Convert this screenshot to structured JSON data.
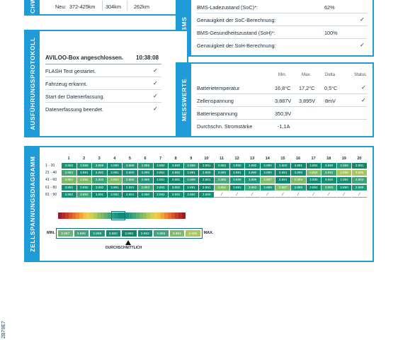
{
  "range_card": {
    "side_label": "REICHWEITE",
    "row_label": "Neu:",
    "values": [
      "372-425km",
      "304km",
      "262km"
    ]
  },
  "bms_card": {
    "side_label": "BMS",
    "rows": [
      {
        "label": "BMS-Ladezustand (SoC)*:",
        "value": "62%"
      },
      {
        "label": "Genauigkeit der SoC-Berechnung:",
        "value": "✓"
      },
      {
        "label": "BMS-Gesundheitszustand (SoH)*:",
        "value": "100%"
      },
      {
        "label": "Genauigkeit der SoH-Berechnung:",
        "value": "✓"
      }
    ]
  },
  "protocol_card": {
    "side_label": "AUSFÜHRUNGSPROTOKOLL",
    "title": "AVILOO-Box angeschlossen.",
    "time": "10:38:08",
    "steps": [
      {
        "label": "FLASH Test gestartet.",
        "value": "✓"
      },
      {
        "label": "Fahrzeug erkannt.",
        "value": "✓"
      },
      {
        "label": "Start der Datenerfassung.",
        "value": "✓"
      },
      {
        "label": "Datenerfassung beendet.",
        "value": "✓"
      }
    ]
  },
  "measure_card": {
    "side_label": "MESSWERTE",
    "headers": [
      "Min.",
      "Max.",
      "Delta",
      "Status"
    ],
    "rows": [
      {
        "label": "Batterietemperatur",
        "min": "16,8°C",
        "max": "17,2°C",
        "delta": "0,5°C",
        "status": "✓"
      },
      {
        "label": "Zellenspannung",
        "min": "3,887V",
        "max": "3,895V",
        "delta": "8mV",
        "status": "✓"
      },
      {
        "label": "Batteriespannung",
        "min": "350,9V",
        "max": "",
        "delta": "",
        "status": ""
      },
      {
        "label": "Durchschn. Stromstärke",
        "min": "-1,1A",
        "max": "",
        "delta": "",
        "status": ""
      }
    ]
  },
  "cell_card": {
    "side_label": "ZELLSPANNUNGSDIAGRAMM",
    "columns": [
      "1",
      "2",
      "3",
      "4",
      "5",
      "6",
      "7",
      "8",
      "9",
      "10",
      "11",
      "12",
      "13",
      "14",
      "15",
      "16",
      "17",
      "18",
      "19",
      "20"
    ],
    "rows": [
      {
        "label": "1 - 20",
        "cells": [
          "3.892",
          "3.889",
          "3.889",
          "3.890",
          "3.889",
          "3.889",
          "3.892",
          "3.890",
          "3.889",
          "3.891",
          "3.892",
          "3.890",
          "3.890",
          "3.890",
          "3.890",
          "3.891",
          "3.891",
          "3.890",
          "3.889",
          "3.891"
        ]
      },
      {
        "label": "21 - 40",
        "cells": [
          "3.893",
          "3.891",
          "3.892",
          "3.891",
          "3.890",
          "3.890",
          "3.891",
          "3.892",
          "3.891",
          "3.890",
          "3.890",
          "3.891",
          "3.890",
          "3.890",
          "3.891",
          "3.890",
          "3.894",
          "3.893",
          "3.895",
          "3.895"
        ]
      },
      {
        "label": "41 - 60",
        "cells": [
          "3.894",
          "3.894",
          "3.893",
          "3.894",
          "3.888",
          "3.889",
          "3.891",
          "3.891",
          "3.889",
          "3.891",
          "3.888",
          "3.889",
          "3.889",
          "3.887",
          "3.891",
          "3.894",
          "3.890",
          "3.892",
          "3.892",
          "3.893"
        ]
      },
      {
        "label": "61 - 80",
        "cells": [
          "3.892",
          "3.892",
          "3.892",
          "3.891",
          "3.891",
          "3.893",
          "3.892",
          "3.892",
          "3.891",
          "3.891",
          "3.894",
          "3.891",
          "3.893",
          "3.889",
          "3.887",
          "3.889",
          "3.891",
          "3.893",
          "3.890",
          "3.889"
        ]
      },
      {
        "label": "81 - 90",
        "cells": [
          "3.892",
          "3.893",
          "3.891",
          "3.892",
          "3.891",
          "3.890",
          "3.892",
          "3.892",
          "3.892",
          "3.890",
          "",
          "",
          "",
          "",
          "",
          "",
          "",
          "",
          "",
          ""
        ]
      }
    ],
    "legend": {
      "min_label": "MIN.",
      "max_label": "MAX.",
      "values": [
        "3.887",
        "3.888",
        "3.889",
        "3.890",
        "3.891",
        "3.892",
        "3.893",
        "3.894",
        "3.895"
      ],
      "colors": [
        "#6ab47a",
        "#3ca67a",
        "#1e9a7a",
        "#0f8f73",
        "#0d8a6c",
        "#0f8f73",
        "#3ca67a",
        "#7bbd6a",
        "#a8c858"
      ],
      "average_label": "DURCHSCHNITTLICH"
    },
    "scale_colors": [
      "#9b1c25",
      "#b22b27",
      "#c63c2a",
      "#d9542c",
      "#e56d2f",
      "#ee8733",
      "#f3a23a",
      "#f6bd45",
      "#e9cb4f",
      "#cfcf55",
      "#b4c95c",
      "#96bf63",
      "#7bb76b",
      "#5fae73",
      "#46a67a",
      "#2e9d7f",
      "#1b957f",
      "#108c7a",
      "#108c7a",
      "#1b957f",
      "#2e9d7f",
      "#46a67a",
      "#5fae73",
      "#7bb76b",
      "#96bf63",
      "#b4c95c",
      "#cfcf55",
      "#e9cb4f",
      "#f6bd45",
      "#f3a23a",
      "#ee8733",
      "#e56d2f",
      "#d9542c",
      "#c63c2a",
      "#b22b27",
      "#9b1c25"
    ]
  },
  "footer": {
    "code": "2B79E7"
  }
}
